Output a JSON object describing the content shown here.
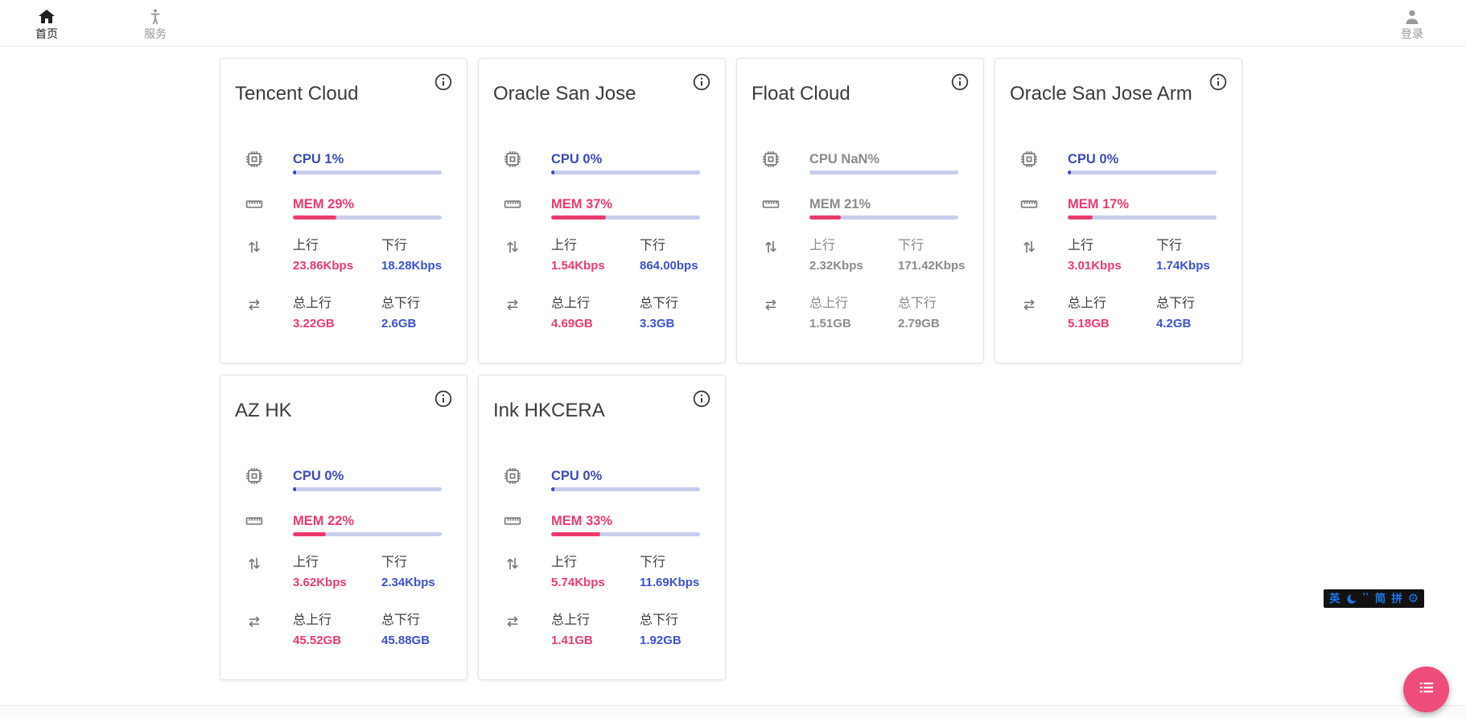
{
  "nav": {
    "home": {
      "label": "首页",
      "icon": "home-icon",
      "active": true
    },
    "services": {
      "label": "服务",
      "icon": "person-standing-icon",
      "active": false
    },
    "login": {
      "label": "登录",
      "icon": "person-icon",
      "active": false
    }
  },
  "labels": {
    "up": "上行",
    "down": "下行",
    "total_up": "总上行",
    "total_down": "总下行"
  },
  "servers": [
    {
      "name": "Tencent Cloud",
      "cpu": "CPU 1%",
      "cpu_pct": 1,
      "mem": "MEM 29%",
      "mem_pct": 29,
      "up": "23.86Kbps",
      "down": "18.28Kbps",
      "total_up": "3.22GB",
      "total_down": "2.6GB",
      "offline": false
    },
    {
      "name": "Oracle San Jose",
      "cpu": "CPU 0%",
      "cpu_pct": 0,
      "mem": "MEM 37%",
      "mem_pct": 37,
      "up": "1.54Kbps",
      "down": "864.00bps",
      "total_up": "4.69GB",
      "total_down": "3.3GB",
      "offline": false
    },
    {
      "name": "Float Cloud",
      "cpu": "CPU NaN%",
      "cpu_pct": null,
      "mem": "MEM 21%",
      "mem_pct": 21,
      "up": "2.32Kbps",
      "down": "171.42Kbps",
      "total_up": "1.51GB",
      "total_down": "2.79GB",
      "offline": true
    },
    {
      "name": "Oracle San Jose Arm",
      "cpu": "CPU 0%",
      "cpu_pct": 0,
      "mem": "MEM 17%",
      "mem_pct": 17,
      "up": "3.01Kbps",
      "down": "1.74Kbps",
      "total_up": "5.18GB",
      "total_down": "4.2GB",
      "offline": false
    },
    {
      "name": "AZ HK",
      "cpu": "CPU 0%",
      "cpu_pct": 0,
      "mem": "MEM 22%",
      "mem_pct": 22,
      "up": "3.62Kbps",
      "down": "2.34Kbps",
      "total_up": "45.52GB",
      "total_down": "45.88GB",
      "offline": false
    },
    {
      "name": "Ink HKCERA",
      "cpu": "CPU 0%",
      "cpu_pct": 0,
      "mem": "MEM 33%",
      "mem_pct": 33,
      "up": "5.74Kbps",
      "down": "11.69Kbps",
      "total_up": "1.41GB",
      "total_down": "1.92GB",
      "offline": false
    }
  ],
  "ime_bar": {
    "english": "英",
    "quotes": "’’",
    "simplified": "简",
    "pinyin": "拼",
    "icons": [
      "moon-icon",
      "gear-icon"
    ]
  },
  "fab": {
    "icon": "list-icon"
  },
  "colors": {
    "accent_blue": "#3b4ab8",
    "value_blue": "#3d51d1",
    "pink": "#ec3a6e",
    "fab_pink": "#ee4c7b",
    "track": "#c8cdee",
    "gray_text": "#8b8b8b",
    "dark_text": "#3e3e3e",
    "icon_gray": "#7b7b7b"
  }
}
